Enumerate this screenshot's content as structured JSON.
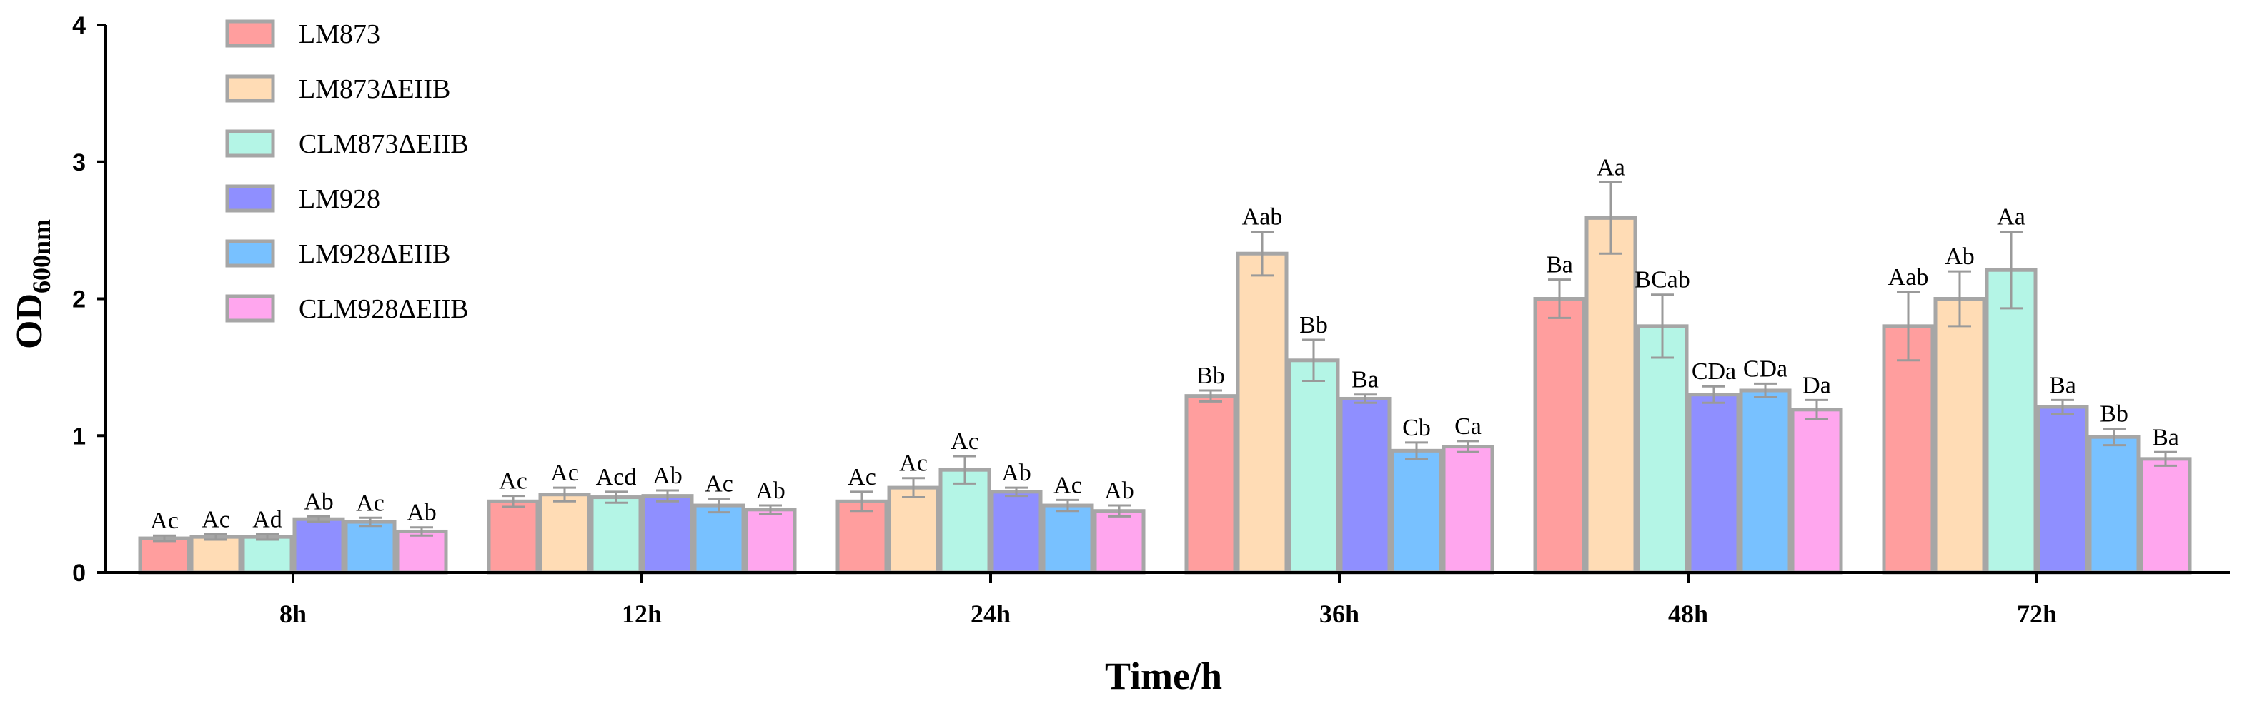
{
  "chart_data": {
    "type": "bar",
    "title": "",
    "xlabel": "Time/h",
    "ylabel": {
      "main": "OD",
      "sub": "600nm"
    },
    "ylim": [
      0,
      4
    ],
    "yticks": [
      "0",
      "1",
      "2",
      "3",
      "4"
    ],
    "categories": [
      "8h",
      "12h",
      "24h",
      "36h",
      "48h",
      "72h"
    ],
    "legend_position": "top-left",
    "series": [
      {
        "name": "LM873",
        "color": "#ff9e9e",
        "values": [
          0.25,
          0.52,
          0.52,
          1.29,
          2.0,
          1.8
        ],
        "errors": [
          0.02,
          0.04,
          0.07,
          0.04,
          0.14,
          0.25
        ],
        "labels": [
          "Ac",
          "Ac",
          "Ac",
          "Bb",
          "Ba",
          "Aab"
        ]
      },
      {
        "name": "LM873ΔEIIB",
        "color": "#ffdcb5",
        "values": [
          0.26,
          0.57,
          0.62,
          2.33,
          2.59,
          2.0
        ],
        "errors": [
          0.02,
          0.05,
          0.07,
          0.16,
          0.26,
          0.2
        ],
        "labels": [
          "Ac",
          "Ac",
          "Ac",
          "Aab",
          "Aa",
          "Ab"
        ]
      },
      {
        "name": "CLM873ΔEIIB",
        "color": "#b4f5e6",
        "values": [
          0.26,
          0.55,
          0.75,
          1.55,
          1.8,
          2.21
        ],
        "errors": [
          0.02,
          0.04,
          0.1,
          0.15,
          0.23,
          0.28
        ],
        "labels": [
          "Ad",
          "Acd",
          "Ac",
          "Bb",
          "BCab",
          "Aa"
        ]
      },
      {
        "name": "LM928",
        "color": "#8f8fff",
        "values": [
          0.39,
          0.56,
          0.59,
          1.27,
          1.3,
          1.21
        ],
        "errors": [
          0.02,
          0.04,
          0.03,
          0.03,
          0.06,
          0.05
        ],
        "labels": [
          "Ab",
          "Ab",
          "Ab",
          "Ba",
          "CDa",
          "Ba"
        ]
      },
      {
        "name": "LM928ΔEIIB",
        "color": "#78c1ff",
        "values": [
          0.37,
          0.49,
          0.49,
          0.89,
          1.33,
          0.99
        ],
        "errors": [
          0.03,
          0.05,
          0.04,
          0.06,
          0.05,
          0.06
        ],
        "labels": [
          "Ac",
          "Ac",
          "Ac",
          "Cb",
          "CDa",
          "Bb"
        ]
      },
      {
        "name": "CLM928ΔEIIB",
        "color": "#ffa6ee",
        "values": [
          0.3,
          0.46,
          0.45,
          0.92,
          1.19,
          0.83
        ],
        "errors": [
          0.03,
          0.03,
          0.04,
          0.04,
          0.07,
          0.05
        ],
        "labels": [
          "Ab",
          "Ab",
          "Ab",
          "Ca",
          "Da",
          "Ba"
        ]
      }
    ]
  }
}
